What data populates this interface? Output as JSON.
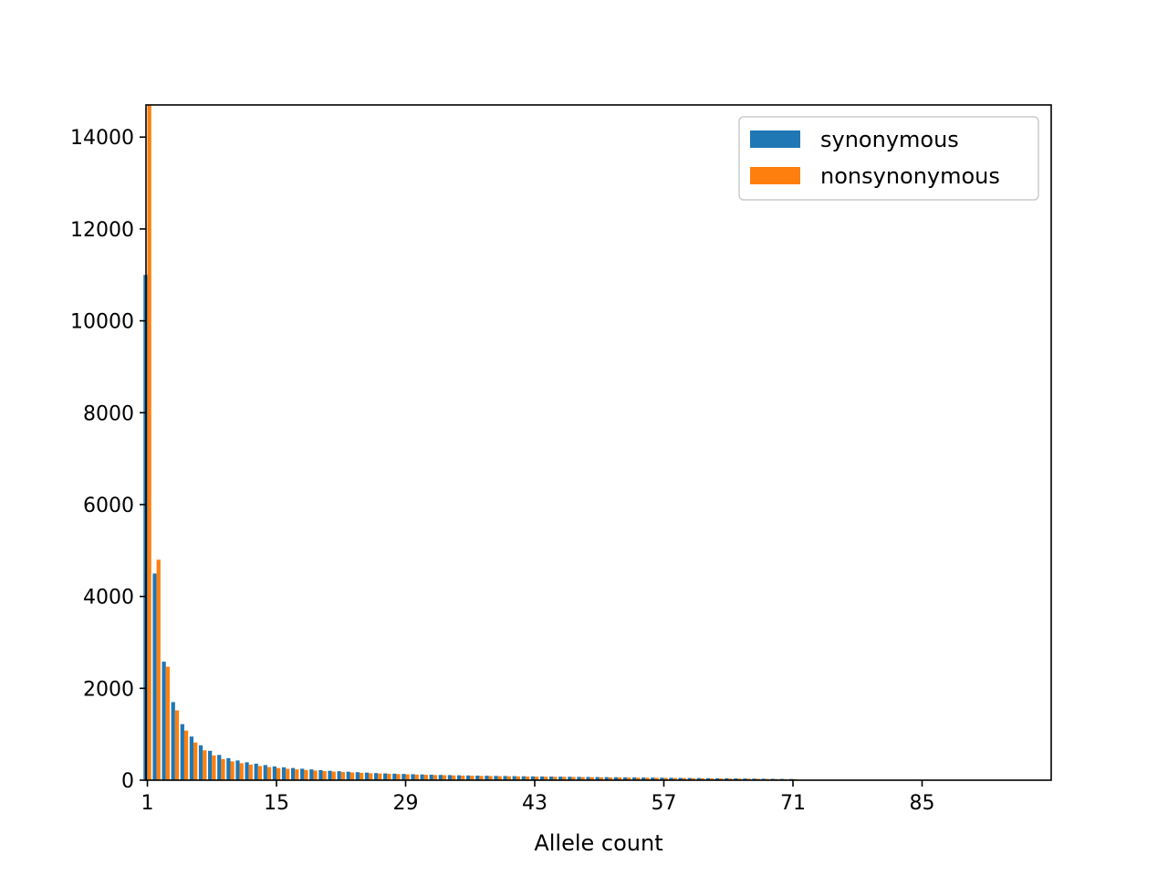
{
  "chart_data": {
    "type": "bar",
    "title": "",
    "xlabel": "Allele count",
    "ylabel": "",
    "xlim": [
      0.85,
      99
    ],
    "ylim": [
      0,
      14700
    ],
    "x_ticks": [
      1,
      15,
      29,
      43,
      57,
      71,
      85
    ],
    "y_ticks": [
      0,
      2000,
      4000,
      6000,
      8000,
      10000,
      12000,
      14000
    ],
    "x": [
      1,
      2,
      3,
      4,
      5,
      6,
      7,
      8,
      9,
      10,
      11,
      12,
      13,
      14,
      15,
      16,
      17,
      18,
      19,
      20,
      21,
      22,
      23,
      24,
      25,
      26,
      27,
      28,
      29,
      30,
      31,
      32,
      33,
      34,
      35,
      36,
      37,
      38,
      39,
      40,
      41,
      42,
      43,
      44,
      45,
      46,
      47,
      48,
      49,
      50,
      51,
      52,
      53,
      54,
      55,
      56,
      57,
      58,
      59,
      60,
      61,
      62,
      63,
      64,
      65,
      66,
      67,
      68,
      69,
      70,
      71
    ],
    "series": [
      {
        "name": "synonymous",
        "color": "#1f77b4",
        "values": [
          11000,
          4500,
          2580,
          1700,
          1220,
          950,
          760,
          640,
          550,
          480,
          430,
          390,
          360,
          330,
          300,
          280,
          265,
          250,
          235,
          220,
          205,
          195,
          185,
          175,
          165,
          155,
          148,
          142,
          136,
          130,
          125,
          120,
          115,
          111,
          107,
          103,
          100,
          97,
          94,
          91,
          88,
          85,
          83,
          81,
          79,
          77,
          75,
          73,
          71,
          69,
          67,
          65,
          63,
          61,
          59,
          57,
          55,
          53,
          51,
          49,
          47,
          45,
          43,
          41,
          39,
          37,
          35,
          33,
          31,
          29,
          27
        ]
      },
      {
        "name": "nonsynonymous",
        "color": "#ff7f0e",
        "values": [
          14700,
          4800,
          2470,
          1520,
          1080,
          820,
          650,
          540,
          460,
          410,
          370,
          340,
          310,
          285,
          265,
          248,
          235,
          222,
          210,
          198,
          188,
          178,
          169,
          160,
          152,
          145,
          139,
          133,
          127,
          122,
          117,
          112,
          108,
          104,
          100,
          97,
          94,
          91,
          88,
          85,
          82,
          80,
          78,
          76,
          74,
          72,
          70,
          68,
          66,
          64,
          62,
          60,
          58,
          56,
          54,
          52,
          50,
          48,
          46,
          44,
          42,
          40,
          38,
          36,
          34,
          32,
          30,
          28,
          26,
          24,
          22
        ]
      }
    ],
    "legend": {
      "placement": "top-right",
      "entries": [
        "synonymous",
        "nonsynonymous"
      ]
    },
    "grid": false
  }
}
